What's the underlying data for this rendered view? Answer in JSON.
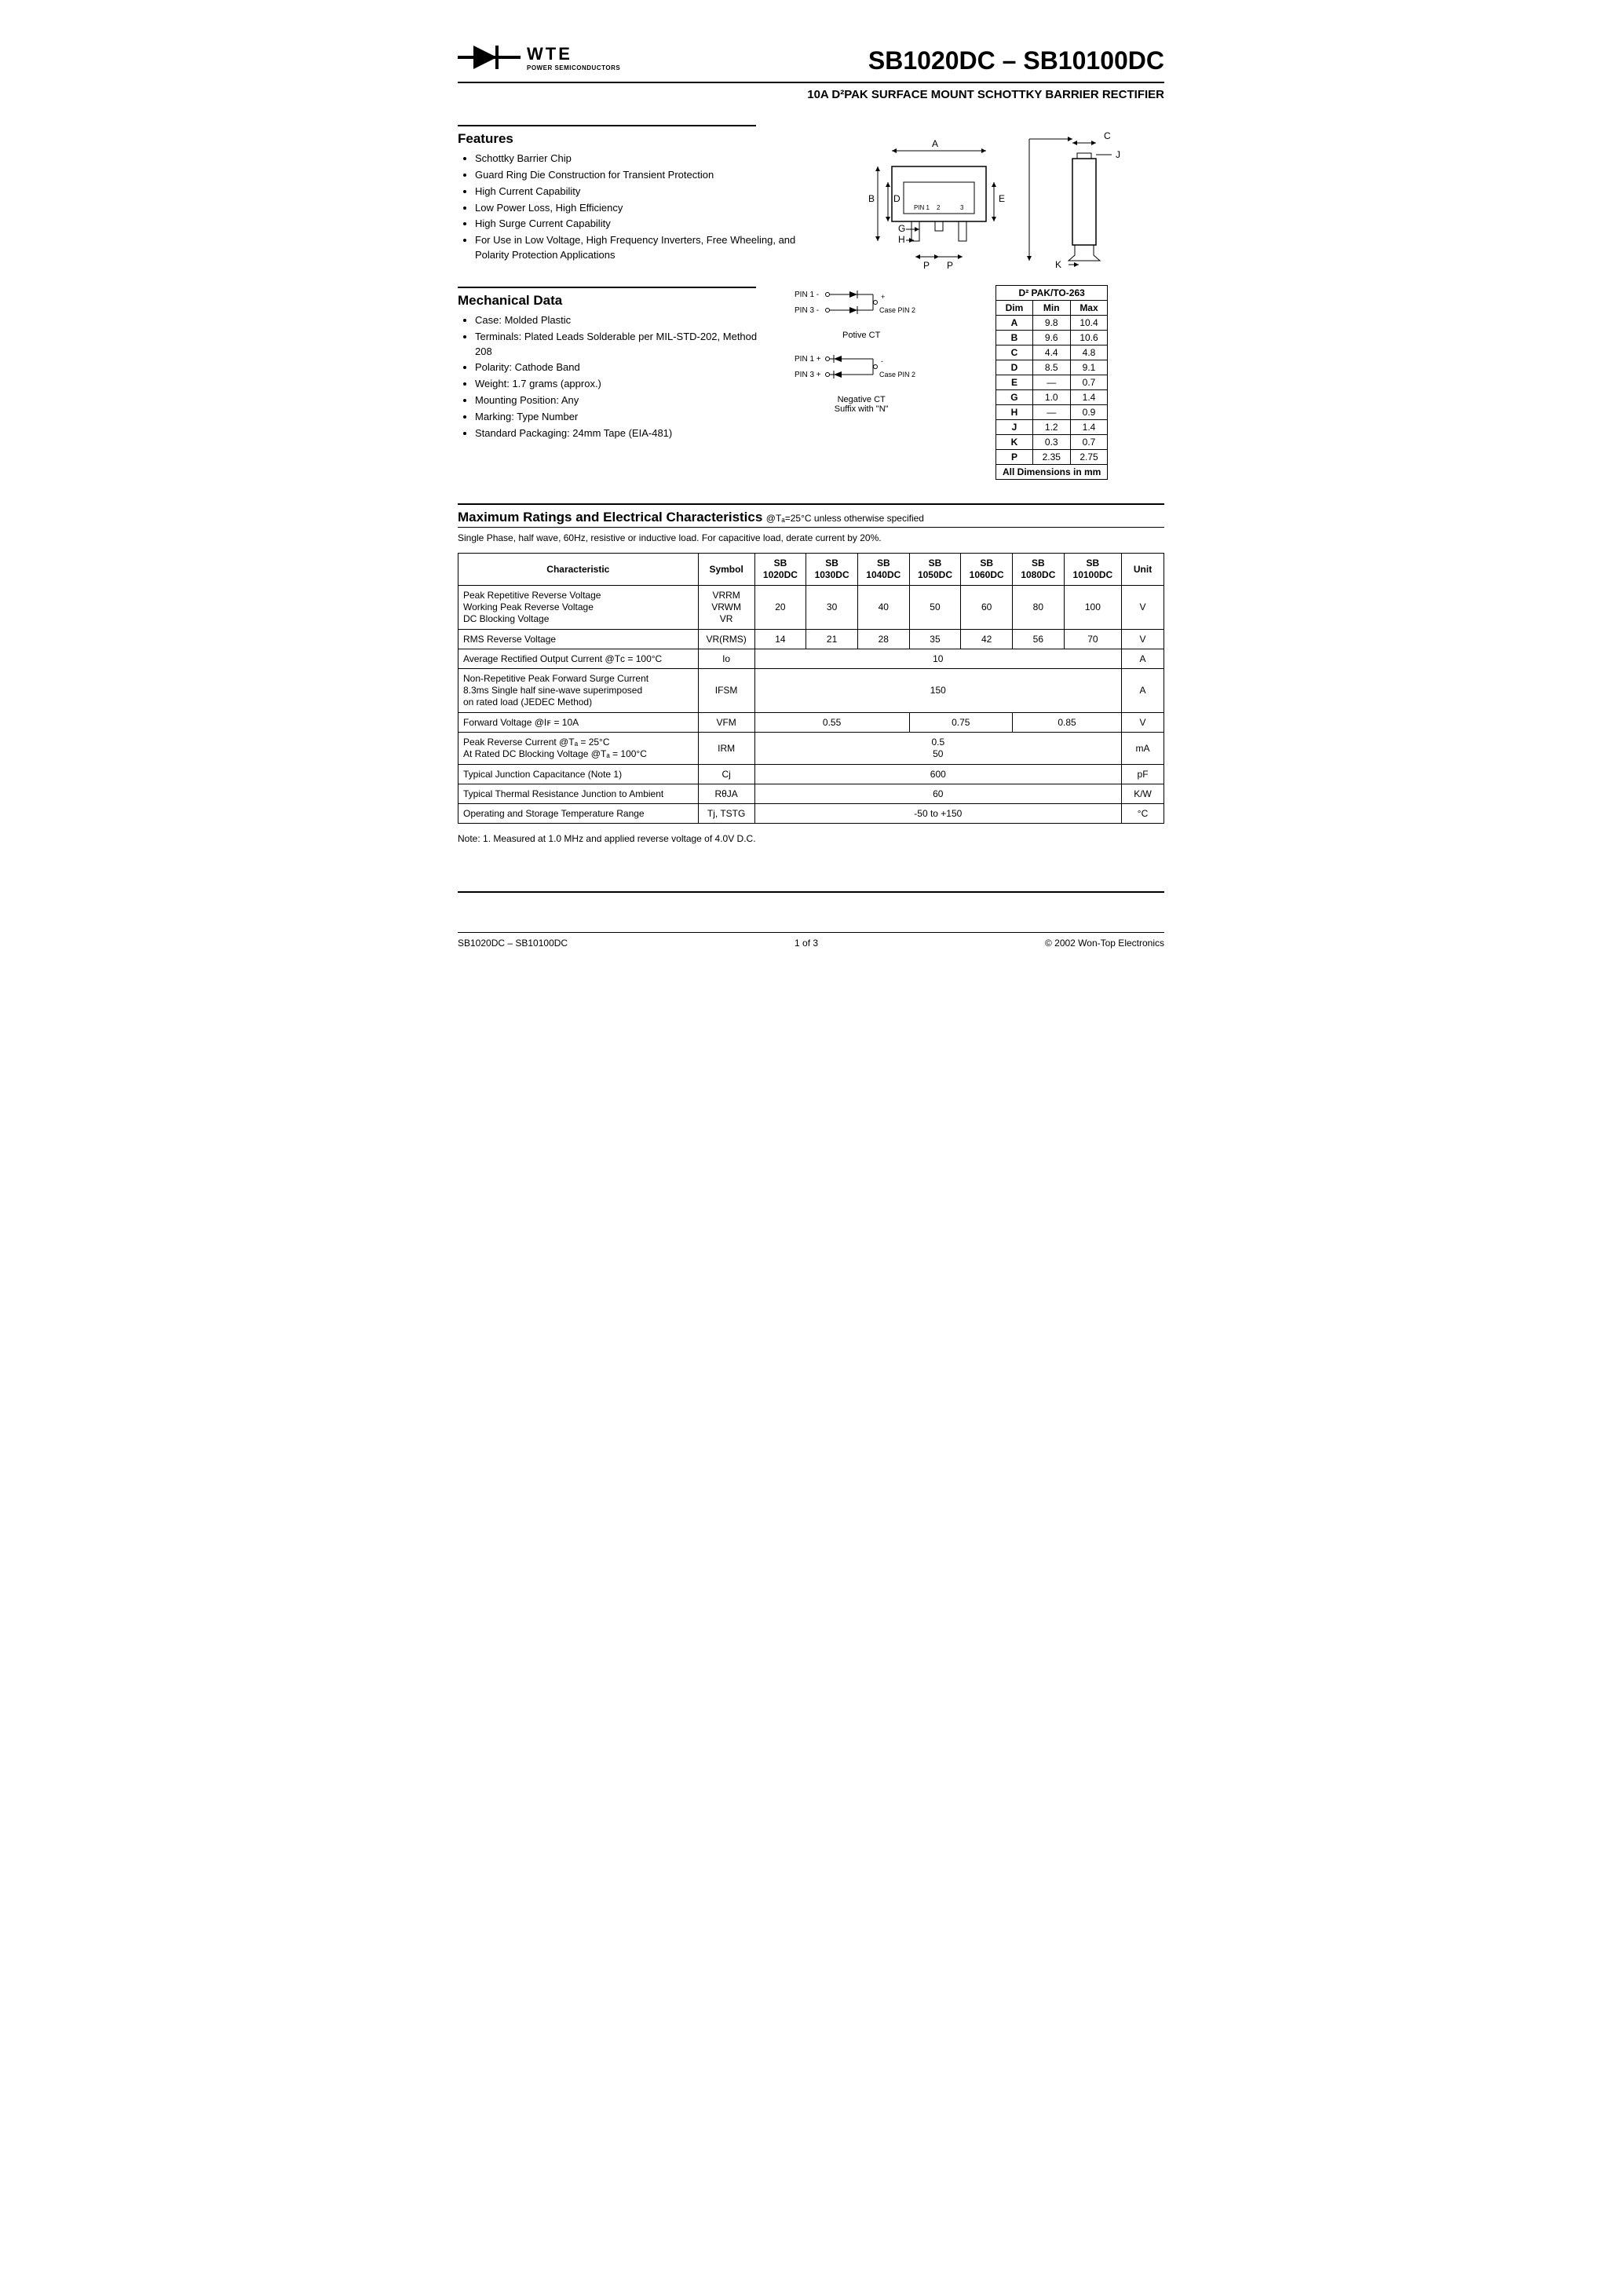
{
  "logo": {
    "brand": "WTE",
    "tagline": "POWER SEMICONDUCTORS"
  },
  "title": "SB1020DC – SB10100DC",
  "subtitle": "10A D²PAK SURFACE MOUNT SCHOTTKY BARRIER RECTIFIER",
  "features": {
    "heading": "Features",
    "items": [
      "Schottky Barrier Chip",
      "Guard Ring Die Construction for Transient Protection",
      "High Current Capability",
      "Low Power Loss, High Efficiency",
      "High Surge Current Capability",
      "For Use in Low Voltage, High Frequency Inverters, Free Wheeling, and Polarity Protection Applications"
    ]
  },
  "mechanical": {
    "heading": "Mechanical Data",
    "items": [
      "Case: Molded Plastic",
      "Terminals: Plated Leads Solderable per MIL-STD-202, Method 208",
      "Polarity: Cathode Band",
      "Weight: 1.7 grams (approx.)",
      "Mounting Position: Any",
      "Marking: Type Number",
      "Standard Packaging: 24mm Tape (EIA-481)"
    ]
  },
  "pkg_labels": {
    "A": "A",
    "B": "B",
    "C": "C",
    "D": "D",
    "E": "E",
    "G": "G",
    "H": "H",
    "J": "J",
    "K": "K",
    "P": "P",
    "pin1": "PIN 1",
    "pin2": "2",
    "pin3": "3"
  },
  "pin_diagrams": {
    "positive": {
      "l1": "PIN 1 -",
      "l2": "PIN 3 -",
      "case": "Case PIN 2",
      "label": "Potive CT",
      "plus": "+"
    },
    "negative": {
      "l1": "PIN 1 +",
      "l2": "PIN 3 +",
      "case": "Case PIN 2",
      "label": "Negative CT",
      "suffix": "Suffix with \"N\"",
      "minus": "-"
    }
  },
  "dim_table": {
    "title": "D² PAK/TO-263",
    "headers": [
      "Dim",
      "Min",
      "Max"
    ],
    "rows": [
      [
        "A",
        "9.8",
        "10.4"
      ],
      [
        "B",
        "9.6",
        "10.6"
      ],
      [
        "C",
        "4.4",
        "4.8"
      ],
      [
        "D",
        "8.5",
        "9.1"
      ],
      [
        "E",
        "—",
        "0.7"
      ],
      [
        "G",
        "1.0",
        "1.4"
      ],
      [
        "H",
        "—",
        "0.9"
      ],
      [
        "J",
        "1.2",
        "1.4"
      ],
      [
        "K",
        "0.3",
        "0.7"
      ],
      [
        "P",
        "2.35",
        "2.75"
      ]
    ],
    "footer": "All Dimensions in mm"
  },
  "ratings": {
    "heading": "Maximum Ratings and Electrical Characteristics",
    "condition": "@Tₐ=25°C unless otherwise specified",
    "subhead": "Single Phase, half wave, 60Hz, resistive or inductive load. For capacitive load, derate current by 20%.",
    "col_headers": [
      "Characteristic",
      "Symbol",
      "SB 1020DC",
      "SB 1030DC",
      "SB 1040DC",
      "SB 1050DC",
      "SB 1060DC",
      "SB 1080DC",
      "SB 10100DC",
      "Unit"
    ],
    "rows": [
      {
        "char": "Peak Repetitive Reverse Voltage\nWorking Peak Reverse Voltage\nDC Blocking Voltage",
        "symbol": "VRRM\nVRWM\nVR",
        "vals": [
          "20",
          "30",
          "40",
          "50",
          "60",
          "80",
          "100"
        ],
        "unit": "V"
      },
      {
        "char": "RMS Reverse Voltage",
        "symbol": "VR(RMS)",
        "vals": [
          "14",
          "21",
          "28",
          "35",
          "42",
          "56",
          "70"
        ],
        "unit": "V"
      },
      {
        "char": "Average Rectified Output Current   @Tᴄ = 100°C",
        "symbol": "Io",
        "span": "10",
        "unit": "A"
      },
      {
        "char": "Non-Repetitive Peak Forward Surge Current\n8.3ms Single half sine-wave superimposed\non rated load (JEDEC Method)",
        "symbol": "IFSM",
        "span": "150",
        "unit": "A"
      },
      {
        "char": "Forward Voltage                             @Iꜰ = 10A",
        "symbol": "VFM",
        "groups": [
          {
            "span": 3,
            "val": "0.55"
          },
          {
            "span": 2,
            "val": "0.75"
          },
          {
            "span": 2,
            "val": "0.85"
          }
        ],
        "unit": "V"
      },
      {
        "char": "Peak Reverse Current            @Tₐ = 25°C\nAt Rated DC Blocking Voltage   @Tₐ = 100°C",
        "symbol": "IRM",
        "span": "0.5\n50",
        "unit": "mA"
      },
      {
        "char": "Typical Junction Capacitance (Note 1)",
        "symbol": "Cj",
        "span": "600",
        "unit": "pF"
      },
      {
        "char": "Typical Thermal Resistance Junction to Ambient",
        "symbol": "RθJA",
        "span": "60",
        "unit": "K/W"
      },
      {
        "char": "Operating and Storage Temperature Range",
        "symbol": "Tj, TSTG",
        "span": "-50 to +150",
        "unit": "°C"
      }
    ],
    "note": "Note:  1. Measured at 1.0 MHz and applied reverse voltage of 4.0V D.C."
  },
  "footer": {
    "left": "SB1020DC – SB10100DC",
    "center": "1 of 3",
    "right": "© 2002 Won-Top Electronics"
  },
  "colors": {
    "text": "#000000",
    "bg": "#ffffff",
    "rule": "#000000"
  }
}
